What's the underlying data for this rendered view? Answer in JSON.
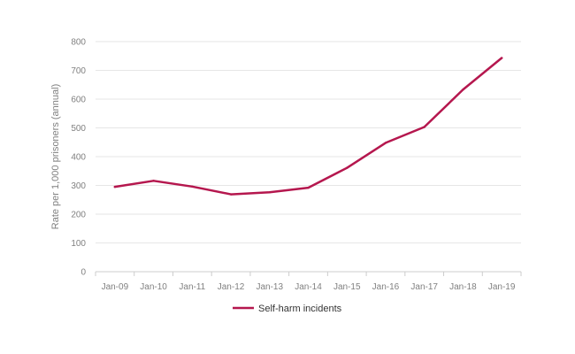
{
  "chart_data": {
    "type": "line",
    "title": "",
    "xlabel": "",
    "ylabel": "Rate per 1,000 prisoners (annual)",
    "categories": [
      "Jan-09",
      "Jan-10",
      "Jan-11",
      "Jan-12",
      "Jan-13",
      "Jan-14",
      "Jan-15",
      "Jan-16",
      "Jan-17",
      "Jan-18",
      "Jan-19"
    ],
    "series": [
      {
        "name": "Self-harm incidents",
        "color": "#b5174e",
        "values": [
          295,
          316,
          296,
          269,
          276,
          292,
          361,
          448,
          503,
          633,
          743
        ]
      }
    ],
    "ylim": [
      0,
      800
    ],
    "yticks": [
      0,
      100,
      200,
      300,
      400,
      500,
      600,
      700,
      800
    ],
    "grid": true,
    "legend_position": "bottom-center"
  }
}
